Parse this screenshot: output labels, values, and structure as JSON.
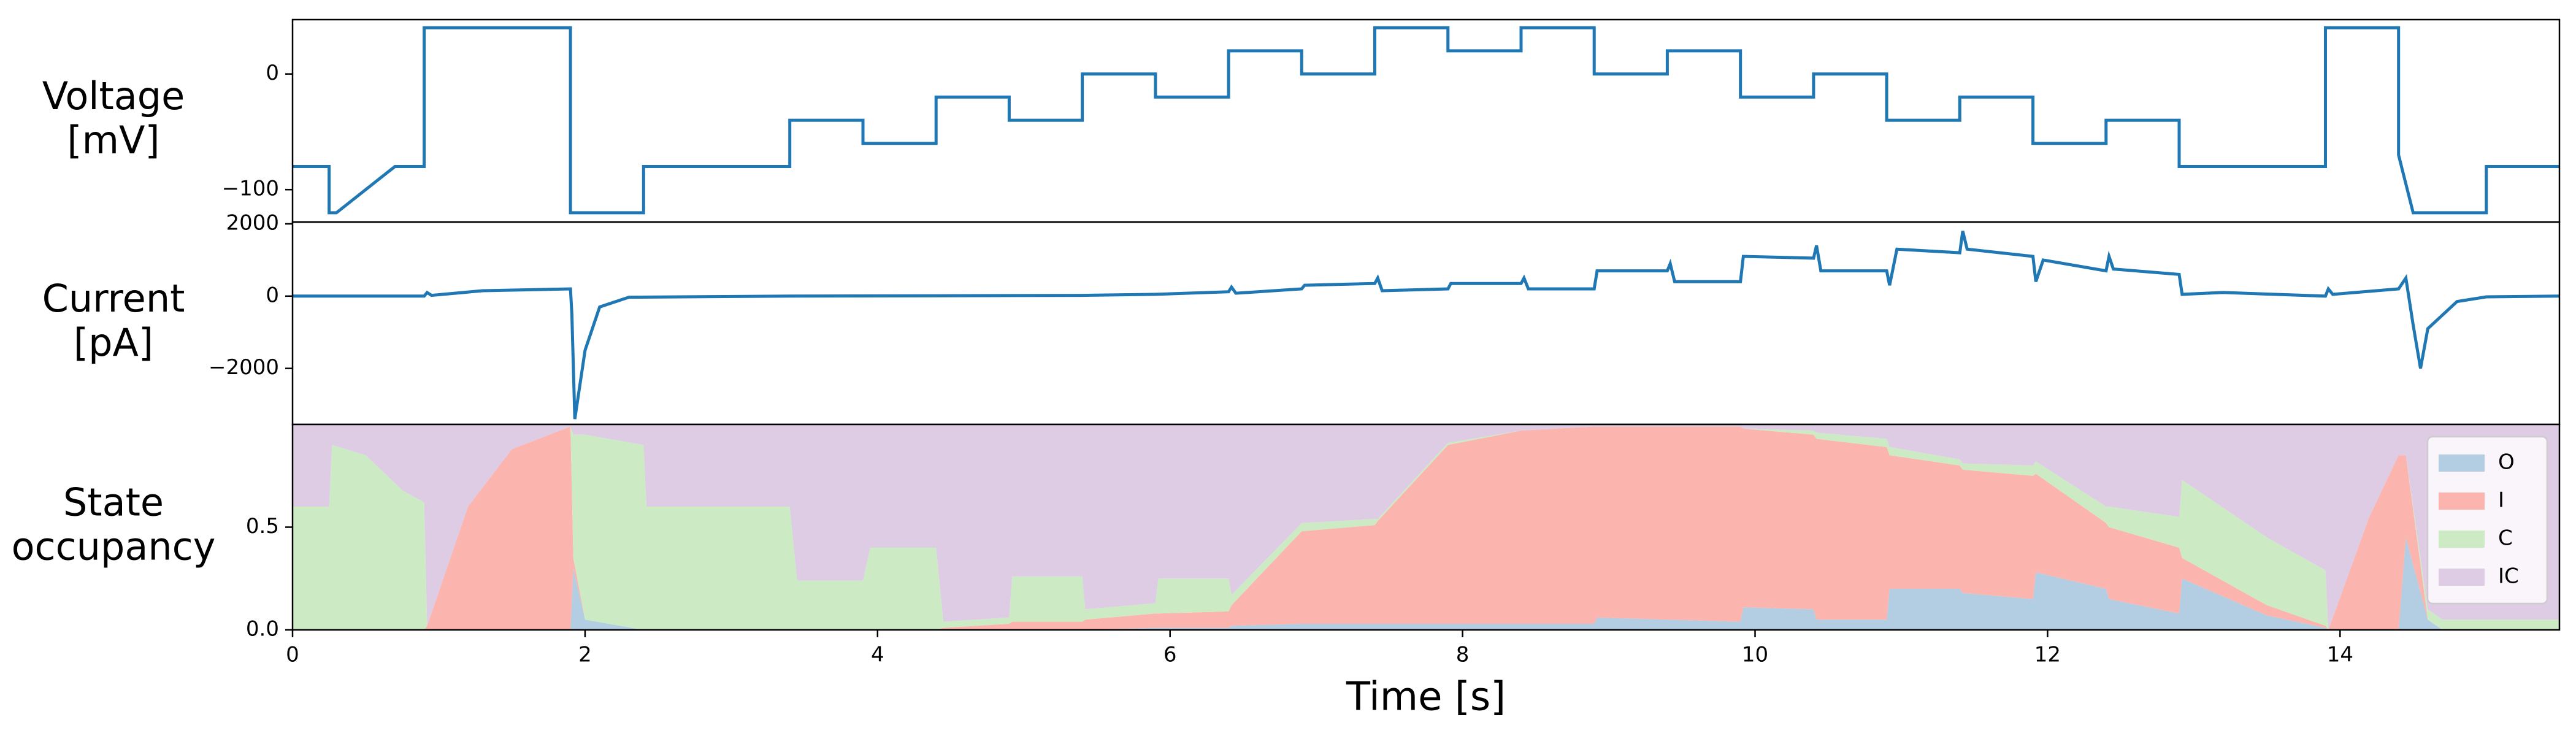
{
  "chart_data": [
    {
      "type": "line",
      "ylabel": [
        "Voltage",
        "[mV]"
      ],
      "color": "#1f77b4",
      "x": [
        0,
        0.25,
        0.25,
        0.3,
        0.7,
        0.9,
        0.9,
        1.9,
        1.9,
        2.4,
        2.4,
        3.4,
        3.4,
        3.9,
        3.9,
        4.4,
        4.4,
        4.9,
        4.9,
        5.4,
        5.4,
        5.9,
        5.9,
        6.4,
        6.4,
        6.9,
        6.9,
        7.4,
        7.4,
        7.9,
        7.9,
        8.4,
        8.4,
        8.9,
        8.9,
        9.4,
        9.4,
        9.9,
        9.9,
        10.4,
        10.4,
        10.9,
        10.9,
        11.4,
        11.4,
        11.9,
        11.9,
        12.4,
        12.4,
        12.9,
        12.9,
        13.9,
        13.9,
        14.4,
        14.4,
        14.45,
        14.5,
        15.0,
        15.0,
        15.5
      ],
      "values": [
        -80,
        -80,
        -120,
        -120,
        -80,
        -80,
        40,
        40,
        -120,
        -120,
        -80,
        -80,
        -40,
        -40,
        -60,
        -60,
        -20,
        -20,
        -40,
        -40,
        0,
        0,
        -20,
        -20,
        20,
        20,
        0,
        0,
        40,
        40,
        20,
        20,
        40,
        40,
        0,
        0,
        20,
        20,
        -20,
        -20,
        0,
        0,
        -40,
        -40,
        -20,
        -20,
        -60,
        -60,
        -40,
        -40,
        -80,
        -80,
        40,
        40,
        -70,
        -95,
        -120,
        -120,
        -80,
        -80
      ],
      "xlim": [
        0,
        15.5
      ],
      "ylim": [
        -128,
        47
      ],
      "yticks": [
        {
          "value": -100,
          "label": "−100"
        },
        0
      ]
    },
    {
      "type": "line",
      "ylabel": [
        "Current",
        "[pA]"
      ],
      "color": "#1f77b4",
      "x": [
        0,
        0.9,
        0.92,
        0.95,
        1.3,
        1.9,
        1.91,
        1.93,
        2.0,
        2.1,
        2.3,
        3.4,
        5.4,
        5.9,
        6.4,
        6.42,
        6.45,
        6.9,
        6.92,
        7.4,
        7.42,
        7.45,
        7.9,
        7.92,
        8.4,
        8.42,
        8.45,
        8.9,
        8.92,
        9.4,
        9.42,
        9.45,
        9.9,
        9.92,
        10.4,
        10.42,
        10.45,
        10.9,
        10.92,
        10.97,
        11.4,
        11.42,
        11.45,
        11.9,
        11.92,
        11.97,
        12.4,
        12.42,
        12.45,
        12.9,
        12.92,
        13.2,
        13.9,
        13.92,
        13.95,
        14.4,
        14.45,
        14.5,
        14.55,
        14.6,
        14.8,
        15.0,
        15.5
      ],
      "values": [
        0,
        0,
        100,
        20,
        150,
        200,
        -500,
        -3400,
        -1500,
        -300,
        -30,
        0,
        20,
        50,
        120,
        250,
        80,
        200,
        300,
        350,
        500,
        150,
        200,
        350,
        350,
        500,
        200,
        200,
        700,
        700,
        900,
        400,
        400,
        1100,
        1050,
        1400,
        700,
        700,
        300,
        1300,
        1200,
        1800,
        1300,
        1100,
        400,
        1000,
        700,
        1100,
        750,
        600,
        50,
        100,
        0,
        200,
        50,
        200,
        500,
        -800,
        -2000,
        -900,
        -150,
        -20,
        0
      ],
      "xlim": [
        0,
        15.5
      ],
      "ylim": [
        -3550,
        2050
      ],
      "yticks": [
        {
          "value": -2000,
          "label": "−2000"
        },
        0,
        2000
      ]
    },
    {
      "type": "stackplot",
      "ylabel": [
        "State",
        "occupancy"
      ],
      "xlabel": "Time [s]",
      "x": [
        0,
        0.25,
        0.27,
        0.5,
        0.75,
        0.9,
        0.92,
        1.2,
        1.5,
        1.9,
        1.92,
        2.0,
        2.4,
        2.42,
        3.4,
        3.45,
        3.9,
        3.95,
        4.4,
        4.45,
        4.9,
        4.92,
        5.4,
        5.42,
        5.9,
        5.92,
        6.4,
        6.42,
        6.9,
        7.4,
        7.42,
        7.9,
        8.4,
        8.9,
        8.92,
        9.4,
        9.9,
        9.92,
        10.4,
        10.42,
        10.9,
        10.92,
        11.4,
        11.42,
        11.9,
        11.92,
        12.4,
        12.42,
        12.9,
        12.92,
        13.5,
        13.9,
        13.92,
        14.2,
        14.4,
        14.45,
        14.6,
        14.7,
        15.5
      ],
      "series": [
        {
          "name": "O",
          "color": "#b3cde3",
          "values": [
            0,
            0,
            0,
            0,
            0,
            0,
            0,
            0,
            0,
            0,
            0.3,
            0.05,
            0,
            0,
            0,
            0,
            0,
            0,
            0,
            0,
            0,
            0,
            0,
            0,
            0.01,
            0.01,
            0.01,
            0.02,
            0.03,
            0.03,
            0.03,
            0.03,
            0.03,
            0.03,
            0.06,
            0.05,
            0.04,
            0.11,
            0.1,
            0.05,
            0.05,
            0.2,
            0.2,
            0.18,
            0.15,
            0.28,
            0.2,
            0.15,
            0.08,
            0.25,
            0.07,
            0.01,
            0,
            0,
            0,
            0.45,
            0.05,
            0,
            0
          ]
        },
        {
          "name": "I",
          "color": "#fbb4ae",
          "values": [
            0,
            0,
            0,
            0,
            0,
            0,
            0.02,
            0.6,
            0.88,
            0.99,
            0.05,
            0,
            0,
            0,
            0,
            0,
            0,
            0,
            0,
            0.01,
            0.03,
            0.04,
            0.04,
            0.05,
            0.07,
            0.07,
            0.08,
            0.1,
            0.45,
            0.48,
            0.5,
            0.87,
            0.94,
            0.96,
            0.93,
            0.94,
            0.95,
            0.87,
            0.85,
            0.88,
            0.84,
            0.65,
            0.6,
            0.6,
            0.6,
            0.48,
            0.32,
            0.35,
            0.32,
            0.1,
            0.05,
            0.01,
            0,
            0.55,
            0.85,
            0.4,
            0,
            0,
            0
          ]
        },
        {
          "name": "C",
          "color": "#ccebc5",
          "values": [
            0.6,
            0.6,
            0.9,
            0.85,
            0.68,
            0.62,
            0,
            0,
            0,
            0,
            0.6,
            0.9,
            0.9,
            0.6,
            0.6,
            0.24,
            0.24,
            0.4,
            0.4,
            0.03,
            0.03,
            0.22,
            0.22,
            0.05,
            0.05,
            0.17,
            0.16,
            0.05,
            0.04,
            0.03,
            0.01,
            0.01,
            0,
            0,
            0,
            0,
            0,
            0,
            0.02,
            0.03,
            0.04,
            0.04,
            0.03,
            0.03,
            0.05,
            0.06,
            0.08,
            0.1,
            0.15,
            0.38,
            0.33,
            0.27,
            0,
            0,
            0,
            0,
            0.05,
            0.05,
            0.05
          ]
        },
        {
          "name": "IC",
          "color": "#decbe4",
          "values": [
            0.4,
            0.4,
            0.1,
            0.15,
            0.32,
            0.38,
            0.98,
            0.4,
            0.12,
            0.01,
            0.05,
            0.05,
            0.1,
            0.4,
            0.4,
            0.76,
            0.76,
            0.6,
            0.6,
            0.96,
            0.94,
            0.74,
            0.74,
            0.9,
            0.87,
            0.75,
            0.75,
            0.83,
            0.48,
            0.46,
            0.46,
            0.09,
            0.03,
            0.01,
            0.01,
            0.01,
            0.01,
            0.02,
            0.03,
            0.04,
            0.07,
            0.11,
            0.17,
            0.19,
            0.2,
            0.18,
            0.4,
            0.4,
            0.45,
            0.27,
            0.55,
            0.71,
            1,
            0.45,
            0.15,
            0.15,
            0.9,
            0.95,
            0.95
          ]
        }
      ],
      "xlim": [
        0,
        15.5
      ],
      "ylim": [
        0,
        1
      ],
      "xticks": [
        0,
        2,
        4,
        6,
        8,
        10,
        12,
        14
      ],
      "yticks": [
        {
          "value": 0,
          "label": "0.0"
        },
        0.5
      ],
      "legend": "upper right"
    }
  ]
}
